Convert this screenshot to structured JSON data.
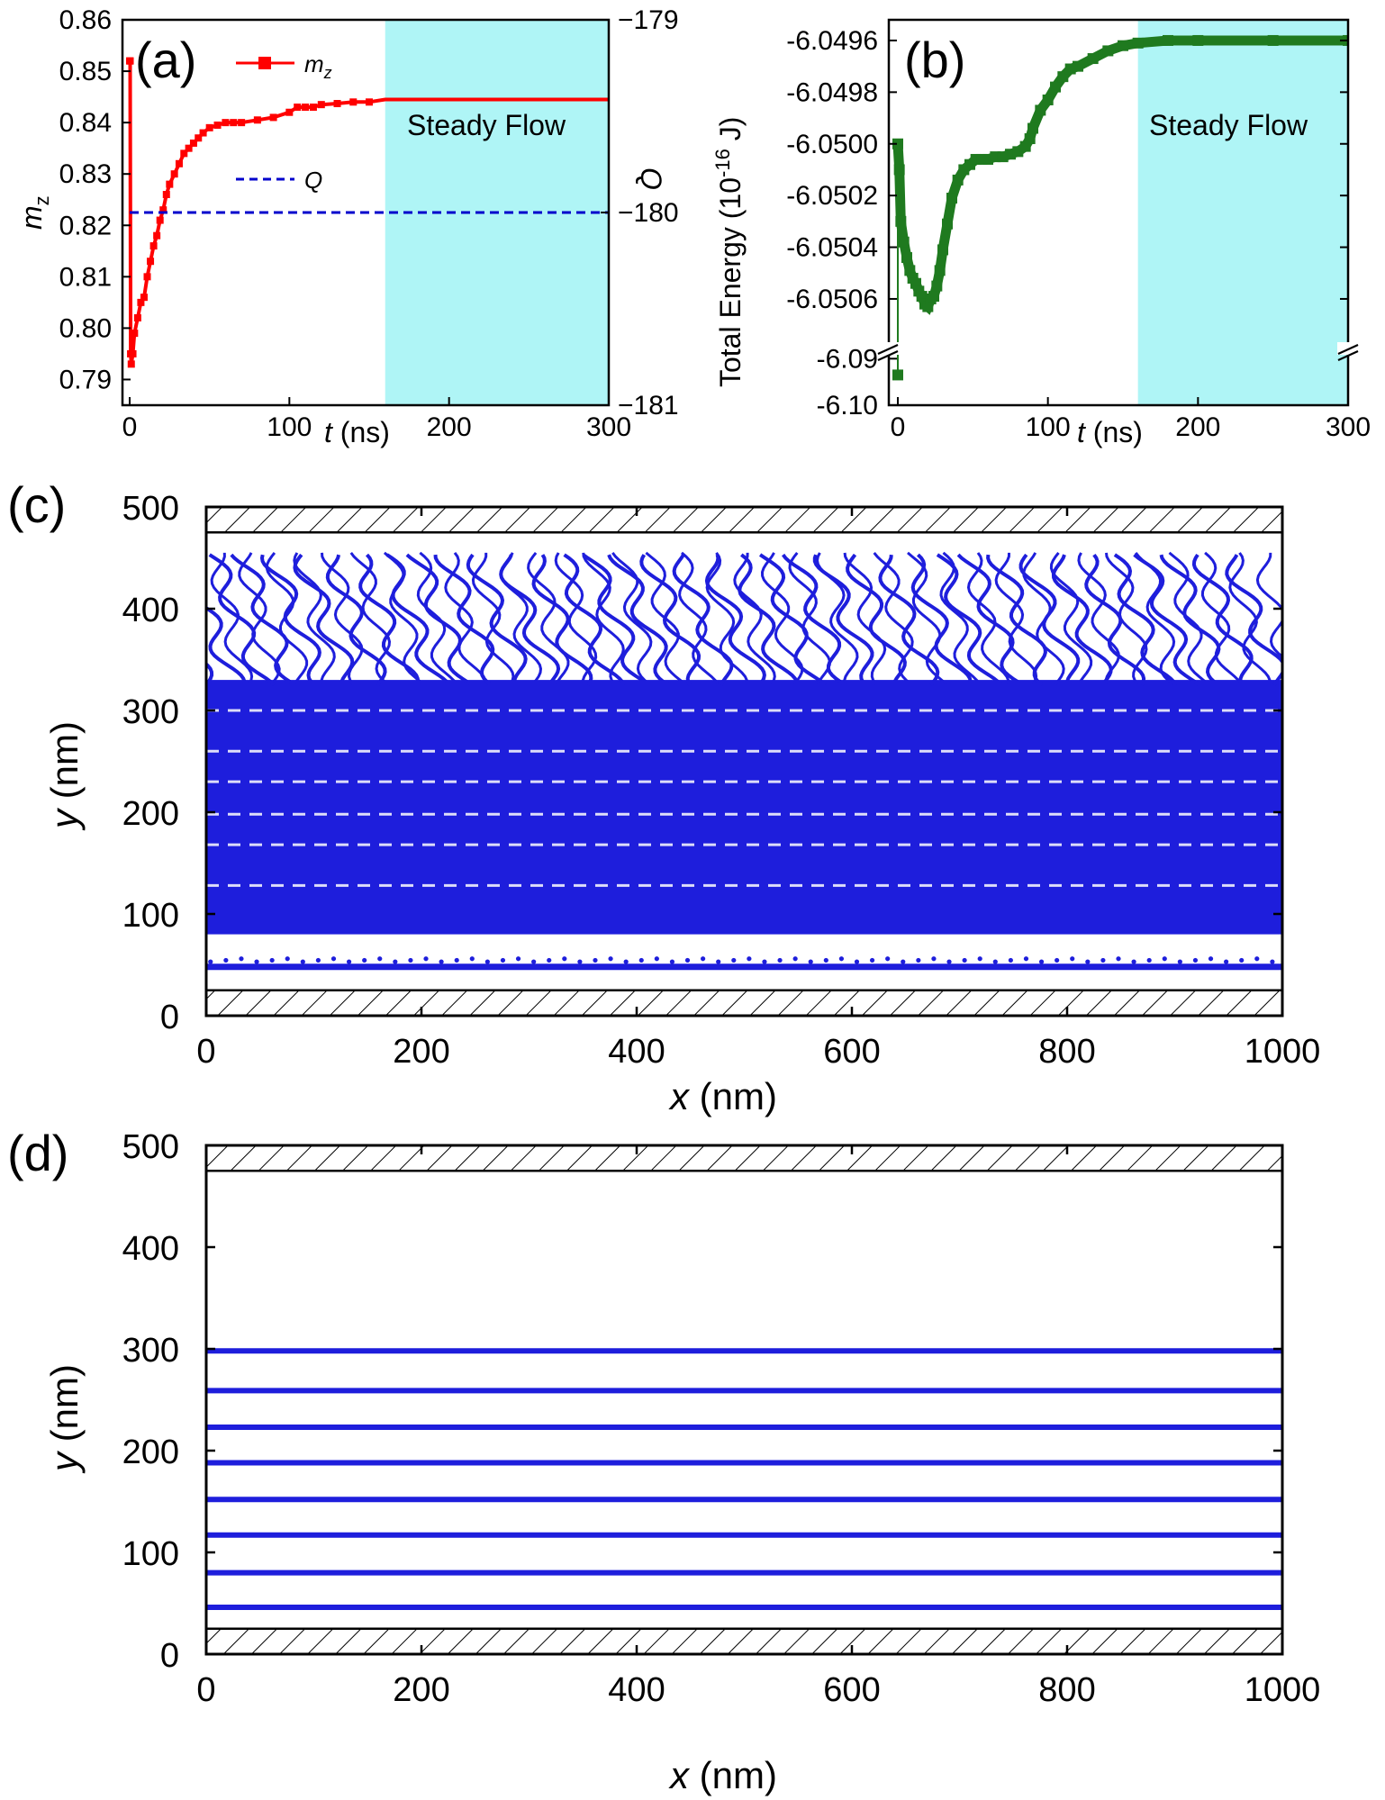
{
  "colors": {
    "mz": "#ff0000",
    "Q": "#0000cc",
    "energy": "#1f7a1f",
    "traj": "#1e1edc",
    "steady": "#aff5f6",
    "wall_hatch": "#000000"
  },
  "panels": {
    "a": {
      "label": "(a)"
    },
    "b": {
      "label": "(b)"
    },
    "c": {
      "label": "(c)"
    },
    "d": {
      "label": "(d)"
    }
  },
  "chart_data": [
    {
      "id": "a",
      "type": "line",
      "xlabel_italic": "t",
      "xlabel_unit": " (ns)",
      "ylabel_main": "m",
      "ylabel_sub": "z",
      "y2label": "Q",
      "xlim": [
        0,
        300
      ],
      "ylim": [
        0.785,
        0.86
      ],
      "y2lim": [
        -181,
        -179
      ],
      "xticks": [
        "0",
        "100",
        "200",
        "300"
      ],
      "xtick_vals": [
        0,
        100,
        200,
        300
      ],
      "yticks": [
        "0.79",
        "0.80",
        "0.81",
        "0.82",
        "0.83",
        "0.84",
        "0.85",
        "0.86"
      ],
      "ytick_vals": [
        0.79,
        0.8,
        0.81,
        0.82,
        0.83,
        0.84,
        0.85,
        0.86
      ],
      "y2ticks": [
        "−181",
        "−180",
        "−179"
      ],
      "y2tick_vals": [
        -181,
        -180,
        -179
      ],
      "shaded_region": {
        "x": [
          160,
          300
        ],
        "label": "Steady Flow"
      },
      "legend": [
        {
          "name_main": "m",
          "name_sub": "z",
          "style": "solid-square"
        },
        {
          "name_main": "Q",
          "name_sub": "",
          "style": "dashed"
        }
      ],
      "series": [
        {
          "name": "mz",
          "axis": "left",
          "x": [
            0,
            0.3,
            0.6,
            1,
            2,
            3,
            5,
            7,
            9,
            11,
            13,
            15,
            17,
            19,
            21,
            23,
            25,
            28,
            31,
            34,
            37,
            40,
            43,
            46,
            50,
            55,
            60,
            65,
            70,
            80,
            90,
            100,
            105,
            110,
            115,
            120,
            130,
            140,
            150,
            160,
            180,
            200,
            250,
            300
          ],
          "y": [
            0.852,
            0.852,
            0.795,
            0.793,
            0.795,
            0.799,
            0.802,
            0.805,
            0.806,
            0.81,
            0.813,
            0.816,
            0.818,
            0.821,
            0.823,
            0.826,
            0.828,
            0.83,
            0.832,
            0.834,
            0.835,
            0.836,
            0.837,
            0.838,
            0.839,
            0.8395,
            0.84,
            0.84,
            0.84,
            0.8405,
            0.841,
            0.842,
            0.843,
            0.843,
            0.843,
            0.8435,
            0.8437,
            0.844,
            0.844,
            0.8445,
            0.8445,
            0.8445,
            0.8445,
            0.8445
          ]
        },
        {
          "name": "Q",
          "axis": "right",
          "x": [
            0,
            300
          ],
          "y": [
            -180,
            -180
          ]
        }
      ]
    },
    {
      "id": "b",
      "type": "line",
      "xlabel_italic": "t",
      "xlabel_unit": " (ns)",
      "ylabel": "Total Energy (10",
      "ylabel_sup": "-16",
      "ylabel_end": " J)",
      "xlim": [
        0,
        300
      ],
      "xticks": [
        "0",
        "100",
        "200",
        "300"
      ],
      "xtick_vals": [
        0,
        100,
        200,
        300
      ],
      "yticks_upper": [
        "-6.0496",
        "-6.0498",
        "-6.0500",
        "-6.0502",
        "-6.0504",
        "-6.0506"
      ],
      "ytick_vals_upper": [
        -6.0496,
        -6.0498,
        -6.05,
        -6.0502,
        -6.0504,
        -6.0506
      ],
      "ylim_upper": [
        -6.05075,
        -6.04952
      ],
      "yticks_lower": [
        "-6.09",
        "-6.10"
      ],
      "ytick_vals_lower": [
        -6.09,
        -6.1
      ],
      "ylim_lower": [
        -6.1,
        -6.088
      ],
      "shaded_region": {
        "x": [
          160,
          300
        ],
        "label": "Steady Flow"
      },
      "series": [
        {
          "name": "Total Energy",
          "outlier": {
            "x": 0,
            "y": -6.0935
          },
          "x": [
            0,
            1,
            2,
            4,
            6,
            8,
            10,
            12,
            14,
            16,
            18,
            20,
            22,
            24,
            26,
            28,
            30,
            33,
            36,
            40,
            44,
            48,
            52,
            56,
            60,
            65,
            70,
            75,
            80,
            85,
            88,
            90,
            95,
            100,
            105,
            110,
            115,
            120,
            130,
            140,
            150,
            160,
            180,
            200,
            250,
            300
          ],
          "y": [
            -6.05,
            -6.0501,
            -6.0503,
            -6.05038,
            -6.05044,
            -6.05049,
            -6.05052,
            -6.05054,
            -6.05057,
            -6.05059,
            -6.05062,
            -6.05063,
            -6.0506,
            -6.05059,
            -6.05055,
            -6.05049,
            -6.05041,
            -6.05031,
            -6.05021,
            -6.05014,
            -6.0501,
            -6.05008,
            -6.05006,
            -6.05006,
            -6.05006,
            -6.05005,
            -6.05005,
            -6.05004,
            -6.05003,
            -6.05001,
            -6.04998,
            -6.04994,
            -6.04987,
            -6.04983,
            -6.04978,
            -6.04974,
            -6.04971,
            -6.0497,
            -6.04967,
            -6.04964,
            -6.04962,
            -6.04961,
            -6.0496,
            -6.0496,
            -6.0496,
            -6.0496
          ]
        }
      ]
    },
    {
      "id": "c",
      "type": "scatter",
      "xlabel_italic": "x",
      "xlabel_unit": " (nm)",
      "ylabel_italic": "y",
      "ylabel_unit": " (nm)",
      "xlim": [
        0,
        1000
      ],
      "ylim": [
        0,
        500
      ],
      "xticks": [
        "0",
        "200",
        "400",
        "600",
        "800",
        "1000"
      ],
      "xtick_vals": [
        0,
        200,
        400,
        600,
        800,
        1000
      ],
      "yticks": [
        "0",
        "100",
        "200",
        "300",
        "400",
        "500"
      ],
      "ytick_vals": [
        0,
        100,
        200,
        300,
        400,
        500
      ],
      "walls": [
        [
          0,
          25
        ],
        [
          475,
          500
        ]
      ],
      "trajectory_band_y": [
        45,
        455
      ],
      "dense_region_y": [
        80,
        330
      ],
      "stripe_y": [
        48,
        88,
        128,
        168,
        198,
        230,
        260,
        300
      ]
    },
    {
      "id": "d",
      "type": "line",
      "xlabel_italic": "x",
      "xlabel_unit": " (nm)",
      "ylabel_italic": "y",
      "ylabel_unit": " (nm)",
      "xlim": [
        0,
        1000
      ],
      "ylim": [
        0,
        500
      ],
      "xticks": [
        "0",
        "200",
        "400",
        "600",
        "800",
        "1000"
      ],
      "xtick_vals": [
        0,
        200,
        400,
        600,
        800,
        1000
      ],
      "yticks": [
        "0",
        "100",
        "200",
        "300",
        "400",
        "500"
      ],
      "ytick_vals": [
        0,
        100,
        200,
        300,
        400,
        500
      ],
      "walls": [
        [
          0,
          25
        ],
        [
          475,
          500
        ]
      ],
      "lanes_y": [
        46,
        80,
        117,
        152,
        188,
        223,
        259,
        298
      ]
    }
  ]
}
